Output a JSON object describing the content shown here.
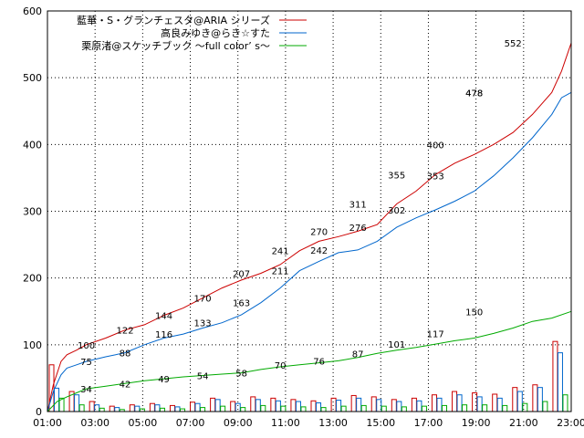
{
  "chart_data": {
    "type": "line",
    "ylim": [
      0,
      600
    ],
    "yticks": [
      "0",
      "100",
      "200",
      "300",
      "400",
      "500",
      "600"
    ],
    "xticks": [
      "01:00",
      "03:00",
      "05:00",
      "07:00",
      "09:00",
      "11:00",
      "13:00",
      "15:00",
      "17:00",
      "19:00",
      "21:00",
      "23:00"
    ],
    "grid": true,
    "legend_position": "top-right",
    "series": [
      {
        "name": "藍華・S・グランチェスタ@ARIA シリーズ",
        "color": "#cc0000",
        "points": [
          [
            0,
            0
          ],
          [
            0.3,
            40
          ],
          [
            0.7,
            75
          ],
          [
            1,
            85
          ],
          [
            1.5,
            92
          ],
          [
            2,
            100
          ],
          [
            3,
            110
          ],
          [
            4,
            122
          ],
          [
            5,
            130
          ],
          [
            6,
            144
          ],
          [
            7,
            155
          ],
          [
            8,
            170
          ],
          [
            9,
            185
          ],
          [
            10,
            197
          ],
          [
            11,
            207
          ],
          [
            12,
            220
          ],
          [
            13,
            241
          ],
          [
            14,
            255
          ],
          [
            15,
            262
          ],
          [
            16,
            270
          ],
          [
            17,
            280
          ],
          [
            18,
            311
          ],
          [
            19,
            330
          ],
          [
            20,
            355
          ],
          [
            21,
            372
          ],
          [
            22,
            385
          ],
          [
            23,
            400
          ],
          [
            24,
            418
          ],
          [
            25,
            445
          ],
          [
            26,
            478
          ],
          [
            26.5,
            510
          ],
          [
            27,
            552
          ]
        ],
        "labels": [
          [
            2,
            100,
            "100"
          ],
          [
            4,
            122,
            "122"
          ],
          [
            6,
            144,
            "144"
          ],
          [
            8,
            170,
            "170"
          ],
          [
            10,
            207,
            "207"
          ],
          [
            12,
            241,
            "241"
          ],
          [
            14,
            270,
            "270"
          ],
          [
            16,
            311,
            "311"
          ],
          [
            18,
            355,
            "355"
          ],
          [
            20,
            400,
            "400"
          ],
          [
            22,
            478,
            "478"
          ],
          [
            24,
            552,
            "552"
          ]
        ]
      },
      {
        "name": "高良みゆき@らき☆すた",
        "color": "#0066cc",
        "points": [
          [
            0,
            0
          ],
          [
            0.3,
            30
          ],
          [
            0.7,
            55
          ],
          [
            1,
            65
          ],
          [
            1.5,
            70
          ],
          [
            2,
            75
          ],
          [
            3,
            82
          ],
          [
            4,
            88
          ],
          [
            5,
            100
          ],
          [
            6,
            110
          ],
          [
            7,
            116
          ],
          [
            8,
            125
          ],
          [
            9,
            133
          ],
          [
            10,
            145
          ],
          [
            11,
            163
          ],
          [
            12,
            185
          ],
          [
            13,
            211
          ],
          [
            14,
            225
          ],
          [
            15,
            238
          ],
          [
            16,
            242
          ],
          [
            17,
            255
          ],
          [
            18,
            276
          ],
          [
            19,
            290
          ],
          [
            20,
            302
          ],
          [
            21,
            315
          ],
          [
            22,
            330
          ],
          [
            23,
            353
          ],
          [
            24,
            380
          ],
          [
            25,
            410
          ],
          [
            26,
            445
          ],
          [
            26.5,
            470
          ],
          [
            27,
            478
          ]
        ],
        "labels": [
          [
            2,
            75,
            "75"
          ],
          [
            4,
            88,
            "88"
          ],
          [
            6,
            116,
            "116"
          ],
          [
            8,
            133,
            "133"
          ],
          [
            10,
            163,
            "163"
          ],
          [
            12,
            211,
            "211"
          ],
          [
            14,
            242,
            "242"
          ],
          [
            16,
            276,
            "276"
          ],
          [
            18,
            302,
            "302"
          ],
          [
            20,
            353,
            "353"
          ],
          [
            22,
            478,
            "478"
          ]
        ]
      },
      {
        "name": "栗原渚@スケッチブック ～full color’ s～",
        "color": "#00aa00",
        "points": [
          [
            0,
            0
          ],
          [
            0.5,
            15
          ],
          [
            1,
            22
          ],
          [
            1.5,
            28
          ],
          [
            2,
            34
          ],
          [
            3,
            38
          ],
          [
            4,
            42
          ],
          [
            5,
            46
          ],
          [
            6,
            49
          ],
          [
            7,
            52
          ],
          [
            8,
            54
          ],
          [
            9,
            56
          ],
          [
            10,
            58
          ],
          [
            11,
            63
          ],
          [
            12,
            67
          ],
          [
            13,
            70
          ],
          [
            14,
            73
          ],
          [
            15,
            76
          ],
          [
            16,
            81
          ],
          [
            17,
            87
          ],
          [
            18,
            92
          ],
          [
            19,
            96
          ],
          [
            20,
            101
          ],
          [
            21,
            106
          ],
          [
            22,
            110
          ],
          [
            23,
            117
          ],
          [
            24,
            125
          ],
          [
            25,
            135
          ],
          [
            26,
            140
          ],
          [
            27,
            150
          ]
        ],
        "labels": [
          [
            2,
            34,
            "34"
          ],
          [
            4,
            42,
            "42"
          ],
          [
            6,
            49,
            "49"
          ],
          [
            8,
            54,
            "54"
          ],
          [
            10,
            58,
            "58"
          ],
          [
            12,
            70,
            "70"
          ],
          [
            14,
            76,
            "76"
          ],
          [
            16,
            87,
            "87"
          ],
          [
            18,
            101,
            "101"
          ],
          [
            20,
            117,
            "117"
          ],
          [
            22,
            150,
            "150"
          ]
        ]
      }
    ],
    "bars": [
      [
        70,
        35,
        20
      ],
      [
        30,
        25,
        10
      ],
      [
        15,
        10,
        5
      ],
      [
        8,
        6,
        3
      ],
      [
        10,
        8,
        4
      ],
      [
        12,
        10,
        5
      ],
      [
        9,
        7,
        4
      ],
      [
        14,
        12,
        6
      ],
      [
        20,
        18,
        8
      ],
      [
        15,
        12,
        6
      ],
      [
        22,
        18,
        9
      ],
      [
        20,
        16,
        8
      ],
      [
        18,
        15,
        7
      ],
      [
        16,
        13,
        6
      ],
      [
        20,
        17,
        8
      ],
      [
        24,
        20,
        9
      ],
      [
        22,
        18,
        8
      ],
      [
        18,
        15,
        7
      ],
      [
        20,
        16,
        8
      ],
      [
        25,
        20,
        9
      ],
      [
        30,
        25,
        10
      ],
      [
        28,
        22,
        10
      ],
      [
        26,
        20,
        9
      ],
      [
        36,
        30,
        12
      ],
      [
        40,
        36,
        15
      ],
      [
        105,
        88,
        25
      ]
    ]
  }
}
